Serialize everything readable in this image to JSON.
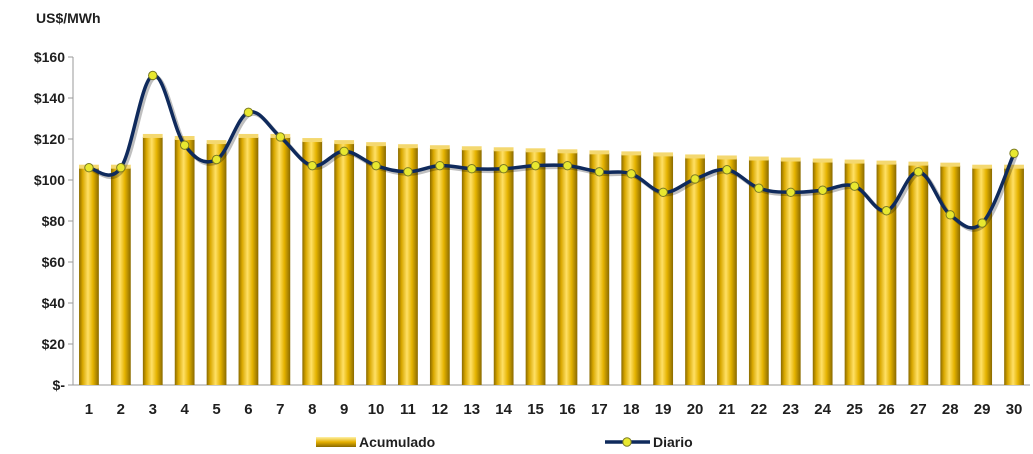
{
  "chart_data": {
    "type": "bar+line",
    "unit_label": "US$/MWh",
    "categories": [
      "1",
      "2",
      "3",
      "4",
      "5",
      "6",
      "7",
      "8",
      "9",
      "10",
      "11",
      "12",
      "13",
      "14",
      "15",
      "16",
      "17",
      "18",
      "19",
      "20",
      "21",
      "22",
      "23",
      "24",
      "25",
      "26",
      "27",
      "28",
      "29",
      "30"
    ],
    "ylim": [
      0,
      160
    ],
    "y_ticks": [
      0,
      20,
      40,
      60,
      80,
      100,
      120,
      140,
      160
    ],
    "y_tick_labels": [
      "$-",
      "$20",
      "$40",
      "$60",
      "$80",
      "$100",
      "$120",
      "$140",
      "$160"
    ],
    "series": [
      {
        "name": "Acumulado",
        "type": "bar",
        "color": "#E6B000",
        "values": [
          106,
          106,
          121,
          120,
          118,
          121,
          121,
          119,
          118,
          117,
          116,
          115.5,
          115,
          114.5,
          114,
          113.5,
          113,
          112.5,
          112,
          111,
          110.5,
          110,
          109.5,
          109,
          108.5,
          108,
          107.5,
          107,
          106,
          106
        ]
      },
      {
        "name": "Diario",
        "type": "line",
        "color": "#0F2A5C",
        "marker_color": "#E8E830",
        "values": [
          106,
          106,
          151,
          117,
          110,
          133,
          121,
          107,
          114,
          107,
          104,
          107,
          105.5,
          105.5,
          107,
          107,
          104,
          103,
          94,
          100.5,
          105,
          96,
          94,
          95,
          97,
          85,
          104,
          83,
          79,
          113
        ]
      }
    ],
    "legend": {
      "position": "bottom"
    },
    "grid": false
  }
}
